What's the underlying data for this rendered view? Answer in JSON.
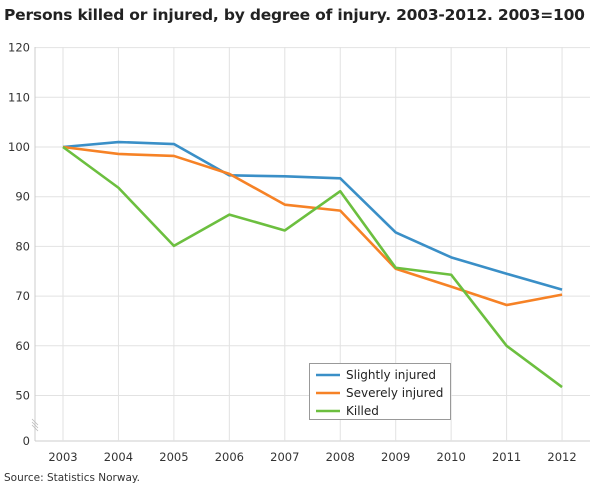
{
  "chart_data": {
    "type": "line",
    "title": "Persons killed or injured, by degree of injury. 2003-2012. 2003=100",
    "source": "Source: Statistics Norway.",
    "categories": [
      "2003",
      "2004",
      "2005",
      "2006",
      "2007",
      "2008",
      "2009",
      "2010",
      "2011",
      "2012"
    ],
    "y_ticks": [
      0,
      50,
      60,
      70,
      80,
      90,
      100,
      110,
      120
    ],
    "ylim": [
      50,
      120
    ],
    "axis_break": true,
    "grid": true,
    "legend_placement": "bottom-center",
    "series": [
      {
        "name": "Slightly injured",
        "color": "#3a8fc7",
        "values": [
          100,
          101,
          100.6,
          94.3,
          94.1,
          93.7,
          82.8,
          77.8,
          74.5,
          71.3
        ]
      },
      {
        "name": "Severely injured",
        "color": "#f68226",
        "values": [
          100,
          98.6,
          98.2,
          94.6,
          88.4,
          87.2,
          75.5,
          71.9,
          68.2,
          70.3
        ]
      },
      {
        "name": "Killed",
        "color": "#6cbf3f",
        "values": [
          100,
          91.8,
          80.1,
          86.4,
          83.2,
          91.1,
          75.7,
          74.3,
          60,
          51.7
        ]
      }
    ]
  }
}
